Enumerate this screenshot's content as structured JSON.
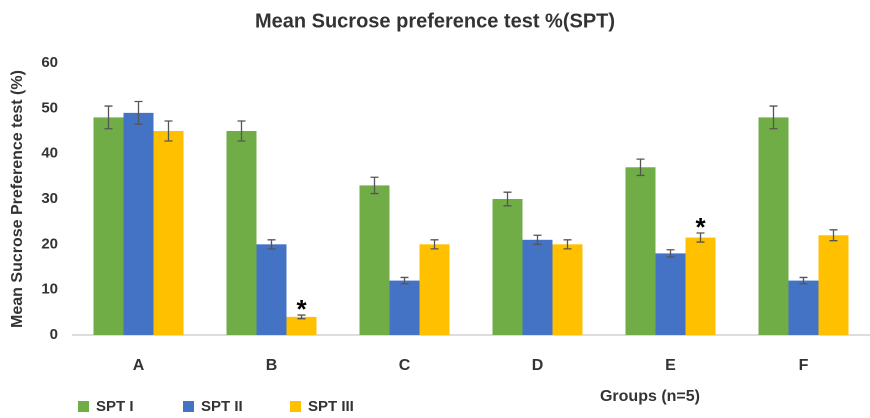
{
  "chart_data": {
    "type": "bar",
    "title": "Mean Sucrose preference test %(SPT)",
    "y_label": "Mean Sucrose Preference test (%)",
    "x_label": "Groups (n=5)",
    "categories": [
      "A",
      "B",
      "C",
      "D",
      "E",
      "F"
    ],
    "series": [
      {
        "name": "SPT I",
        "color": "#70ad47",
        "values": [
          48,
          45,
          33,
          30,
          37,
          48
        ],
        "errors": [
          2.5,
          2.2,
          1.8,
          1.5,
          1.8,
          2.5
        ]
      },
      {
        "name": "SPT II",
        "color": "#4472c4",
        "values": [
          49,
          20,
          12,
          21,
          18,
          12
        ],
        "errors": [
          2.5,
          1,
          0.7,
          1,
          0.8,
          0.7
        ]
      },
      {
        "name": "SPT III",
        "color": "#ffc000",
        "values": [
          45,
          4,
          20,
          20,
          21.5,
          22
        ],
        "errors": [
          2.2,
          0.4,
          1,
          1,
          1,
          1.2
        ]
      }
    ],
    "annotations": [
      {
        "text": "*",
        "category": "B",
        "series": "SPT III"
      },
      {
        "text": "*",
        "category": "E",
        "series": "SPT III"
      }
    ],
    "ylim": [
      0,
      60
    ],
    "yticks": [
      0,
      10,
      20,
      30,
      40,
      50,
      60
    ],
    "grid": false,
    "legend": "bottom-left"
  }
}
